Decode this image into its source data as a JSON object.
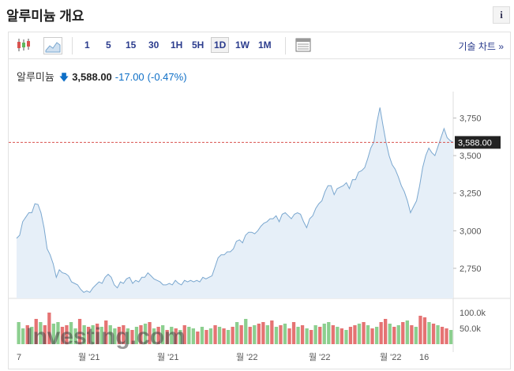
{
  "page": {
    "title": "알루미늄 개요",
    "info_label": "i"
  },
  "toolbar": {
    "timeframes": [
      "1",
      "5",
      "15",
      "30",
      "1H",
      "5H",
      "1D",
      "1W",
      "1M"
    ],
    "selected": "1D",
    "tech_chart_label": "기술 차트",
    "tech_chart_arrow": "»"
  },
  "quote": {
    "name": "알루미늄",
    "price": "3,588.00",
    "change": "-17.00",
    "change_pct": "(-0.47%)",
    "direction": "down"
  },
  "watermark": "Investing.com",
  "colors": {
    "line": "#7aa7cf",
    "area": "#e6eff8",
    "price_line": "#d9534f",
    "down": "#0e6fc7",
    "vol_up": "#8ccf8f",
    "vol_down": "#e57373"
  },
  "chart_data": {
    "type": "line",
    "title": "",
    "y_ticks": [
      "3,750",
      "3,500",
      "3,250",
      "3,000",
      "2,750"
    ],
    "y_tick_values": [
      3750,
      3500,
      3250,
      3000,
      2750
    ],
    "ylim": [
      2550,
      3900
    ],
    "current_price_label": "3,588.00",
    "current_price": 3588,
    "x_tick_labels": [
      "7",
      "월 '21",
      "월 '21",
      "월 '22",
      "월 '22",
      "월 '22",
      "16"
    ],
    "volume_ticks": [
      "100.0k",
      "50.0k"
    ],
    "values": [
      2950,
      2970,
      3060,
      3090,
      3120,
      3120,
      3180,
      3175,
      3120,
      3020,
      2880,
      2840,
      2780,
      2690,
      2740,
      2720,
      2715,
      2700,
      2660,
      2650,
      2640,
      2610,
      2590,
      2600,
      2590,
      2620,
      2640,
      2660,
      2650,
      2690,
      2710,
      2690,
      2640,
      2620,
      2660,
      2650,
      2680,
      2690,
      2650,
      2670,
      2660,
      2690,
      2690,
      2720,
      2700,
      2680,
      2670,
      2660,
      2640,
      2640,
      2650,
      2640,
      2670,
      2650,
      2640,
      2670,
      2660,
      2670,
      2660,
      2670,
      2660,
      2690,
      2680,
      2690,
      2700,
      2760,
      2820,
      2840,
      2840,
      2860,
      2860,
      2880,
      2930,
      2940,
      2920,
      2970,
      2990,
      2990,
      2980,
      3000,
      3030,
      3050,
      3060,
      3080,
      3080,
      3100,
      3060,
      3110,
      3120,
      3100,
      3080,
      3110,
      3120,
      3110,
      3060,
      3020,
      3080,
      3100,
      3150,
      3180,
      3200,
      3260,
      3300,
      3300,
      3240,
      3280,
      3290,
      3300,
      3320,
      3280,
      3340,
      3340,
      3390,
      3400,
      3420,
      3480,
      3550,
      3590,
      3720,
      3820,
      3700,
      3590,
      3500,
      3440,
      3410,
      3360,
      3300,
      3260,
      3200,
      3120,
      3160,
      3200,
      3300,
      3420,
      3500,
      3550,
      3520,
      3500,
      3560,
      3620,
      3680,
      3620,
      3600,
      3588
    ],
    "volume_values": [
      70,
      50,
      60,
      55,
      80,
      70,
      60,
      100,
      65,
      70,
      55,
      60,
      70,
      50,
      80,
      60,
      55,
      60,
      65,
      55,
      75,
      60,
      50,
      55,
      60,
      50,
      45,
      55,
      60,
      65,
      70,
      50,
      55,
      60,
      45,
      55,
      50,
      45,
      60,
      55,
      50,
      40,
      55,
      45,
      50,
      60,
      55,
      50,
      45,
      55,
      70,
      60,
      80,
      55,
      60,
      65,
      70,
      60,
      75,
      55,
      60,
      65,
      50,
      70,
      55,
      60,
      50,
      45,
      60,
      55,
      65,
      70,
      60,
      55,
      50,
      45,
      55,
      60,
      65,
      70,
      60,
      50,
      55,
      70,
      80,
      65,
      55,
      60,
      70,
      75,
      60,
      55,
      90,
      85,
      70,
      65,
      60,
      55,
      50,
      45
    ],
    "volume_up": [
      true,
      true,
      false,
      true,
      false,
      true,
      false,
      false,
      true,
      true,
      false,
      false,
      true,
      true,
      false,
      true,
      false,
      true,
      false,
      true,
      false,
      true,
      true,
      false,
      false,
      true,
      false,
      true,
      false,
      true,
      false,
      true,
      false,
      true,
      false,
      true,
      false,
      true,
      false,
      true,
      true,
      false,
      true,
      false,
      true,
      false,
      true,
      false,
      true,
      false,
      true,
      false,
      true,
      false,
      true,
      false,
      false,
      true,
      false,
      true,
      false,
      true,
      false,
      false,
      true,
      false,
      true,
      false,
      true,
      false,
      true,
      true,
      false,
      true,
      false,
      true,
      false,
      false,
      true,
      false,
      true,
      false,
      true,
      false,
      false,
      true,
      false,
      true,
      false,
      true,
      false,
      true,
      false,
      false,
      true,
      false,
      true,
      false,
      false,
      true
    ],
    "volume_range": [
      0,
      130000
    ],
    "grid": false
  }
}
